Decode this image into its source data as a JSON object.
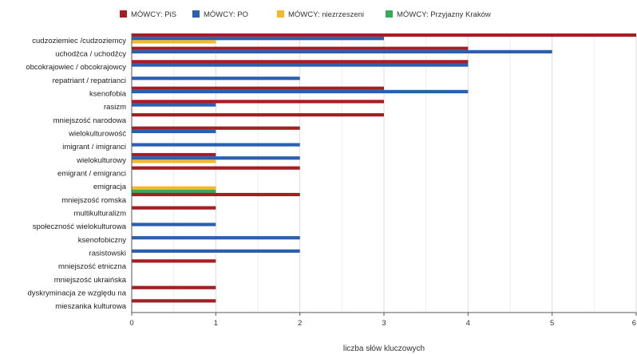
{
  "chart_data": {
    "type": "bar",
    "orientation": "horizontal",
    "xlabel": "liczba słów kluczowych",
    "xlim": [
      0,
      6
    ],
    "xticks": [
      0,
      1,
      2,
      3,
      4,
      5,
      6
    ],
    "grid": true,
    "legend_position": "top",
    "categories": [
      "cudzoziemiec /cudzoziemcy",
      "uchodźca / uchodźcy",
      "obcokrajowiec / obcokrajowcy",
      "repatriant / repatrianci",
      "ksenofobia",
      "rasizm",
      "mniejszość narodowa",
      "wielokulturowość",
      "imigrant / imigranci",
      "wielokulturowy",
      "emigrant / emigranci",
      "emigracja",
      "mniejszość romska",
      "multikulturalizm",
      "społeczność wielokulturowa",
      "ksenofobiczny",
      "rasistowski",
      "mniejszość etniczna",
      "mniejszość ukraińska",
      "dyskryminacja ze względu na",
      "mieszanka kulturowa"
    ],
    "series": [
      {
        "name": "MÓWCY: PiS",
        "color": "#a31f24",
        "values": [
          6,
          4,
          4,
          0,
          3,
          3,
          3,
          2,
          0,
          1,
          2,
          0,
          2,
          1,
          0,
          0,
          0,
          1,
          0,
          1,
          1
        ]
      },
      {
        "name": "MÓWCY: PO",
        "color": "#2d5fb0",
        "values": [
          3,
          5,
          4,
          2,
          4,
          1,
          0,
          1,
          2,
          2,
          0,
          0,
          0,
          0,
          1,
          2,
          2,
          0,
          0,
          0,
          0
        ]
      },
      {
        "name": "MÓWCY: niezrzeszeni",
        "color": "#f2b92b",
        "values": [
          1,
          0,
          0,
          0,
          0,
          0,
          0,
          0,
          0,
          1,
          0,
          1,
          0,
          0,
          0,
          0,
          0,
          0,
          0,
          0,
          0
        ]
      },
      {
        "name": "MÓWCY: Przyjazny Kraków",
        "color": "#3aa85a",
        "values": [
          0,
          0,
          0,
          0,
          0,
          0,
          0,
          0,
          0,
          0,
          0,
          1,
          0,
          0,
          0,
          0,
          0,
          0,
          0,
          0,
          0
        ]
      }
    ]
  }
}
